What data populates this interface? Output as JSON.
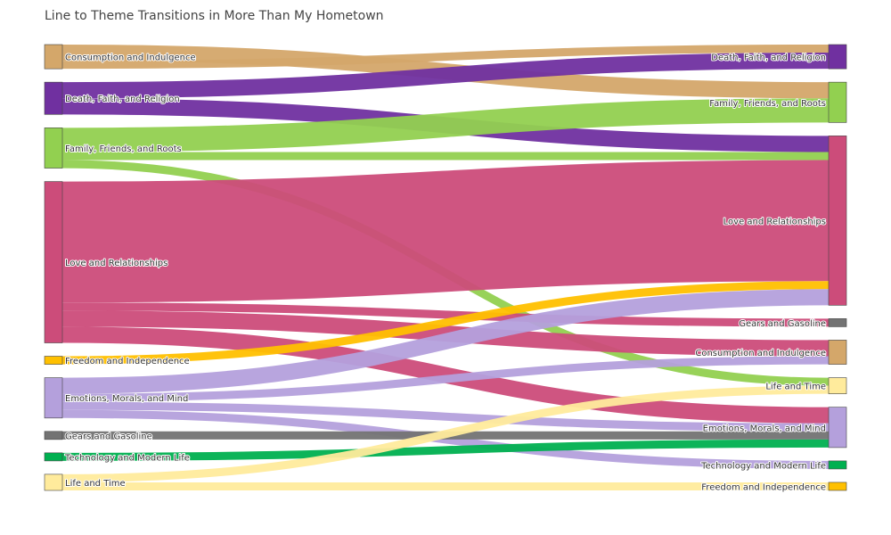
{
  "chart_data": {
    "type": "sankey",
    "title": "Line to Theme Transitions in More Than My Hometown",
    "nodes_left": [
      {
        "label": "Consumption and Indulgence",
        "color": "#d4a76a"
      },
      {
        "label": "Death, Faith, and Religion",
        "color": "#7030a0"
      },
      {
        "label": "Family, Friends, and Roots",
        "color": "#92d050"
      },
      {
        "label": "Love and Relationships",
        "color": "#cc4c7a"
      },
      {
        "label": "Freedom and Independence",
        "color": "#ffc000"
      },
      {
        "label": "Emotions, Morals, and Mind",
        "color": "#b4a0dc"
      },
      {
        "label": "Gears and Gasoline",
        "color": "#737373"
      },
      {
        "label": "Technology and Modern Life",
        "color": "#00b050"
      },
      {
        "label": "Life and Time",
        "color": "#ffeb9c"
      }
    ],
    "nodes_right": [
      {
        "label": "Death, Faith, and Religion",
        "color": "#7030a0"
      },
      {
        "label": "Family, Friends, and Roots",
        "color": "#92d050"
      },
      {
        "label": "Love and Relationships",
        "color": "#cc4c7a"
      },
      {
        "label": "Gears and Gasoline",
        "color": "#737373"
      },
      {
        "label": "Consumption and Indulgence",
        "color": "#d4a76a"
      },
      {
        "label": "Life and Time",
        "color": "#ffeb9c"
      },
      {
        "label": "Emotions, Morals, and Mind",
        "color": "#b4a0dc"
      },
      {
        "label": "Technology and Modern Life",
        "color": "#00b050"
      },
      {
        "label": "Freedom and Independence",
        "color": "#ffc000"
      }
    ],
    "links": [
      {
        "source": 0,
        "target": 1,
        "value": 2
      },
      {
        "source": 0,
        "target": 0,
        "value": 1
      },
      {
        "source": 1,
        "target": 0,
        "value": 2
      },
      {
        "source": 1,
        "target": 2,
        "value": 2
      },
      {
        "source": 2,
        "target": 1,
        "value": 3
      },
      {
        "source": 2,
        "target": 2,
        "value": 1
      },
      {
        "source": 2,
        "target": 5,
        "value": 1
      },
      {
        "source": 3,
        "target": 2,
        "value": 15
      },
      {
        "source": 3,
        "target": 3,
        "value": 1
      },
      {
        "source": 3,
        "target": 4,
        "value": 2
      },
      {
        "source": 3,
        "target": 6,
        "value": 2
      },
      {
        "source": 4,
        "target": 2,
        "value": 1
      },
      {
        "source": 5,
        "target": 2,
        "value": 2
      },
      {
        "source": 5,
        "target": 4,
        "value": 1
      },
      {
        "source": 5,
        "target": 6,
        "value": 1
      },
      {
        "source": 5,
        "target": 7,
        "value": 1
      },
      {
        "source": 6,
        "target": 6,
        "value": 1
      },
      {
        "source": 7,
        "target": 6,
        "value": 1
      },
      {
        "source": 8,
        "target": 5,
        "value": 1
      },
      {
        "source": 8,
        "target": 8,
        "value": 1
      }
    ]
  }
}
